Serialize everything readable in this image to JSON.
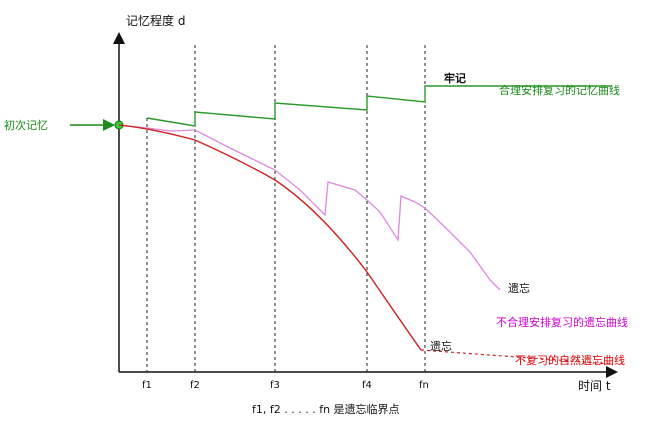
{
  "y_axis_label": "记忆程度 d",
  "x_axis_label": "时间 t",
  "initial_memory_label": "初次记忆",
  "firm_memory_label": "牢记",
  "curve_labels": {
    "reasonable_review": "合理安排复习的记忆曲线",
    "unreasonable_review": "不合理安排复习的遗忘曲线",
    "natural_forgetting": "不复习的自然遗忘曲线"
  },
  "forget_labels": [
    "遗忘",
    "遗忘"
  ],
  "ticks": [
    "f1",
    "f2",
    "f3",
    "f4",
    "fn"
  ],
  "footnote": "f1, f2 . . . . . fn 是遗忘临界点",
  "colors": {
    "green": "#1a8a1a",
    "magenta": "#cc00cc",
    "pink": "#e07ee0",
    "red": "#cc2222",
    "dark_red": "#bb1111"
  }
}
